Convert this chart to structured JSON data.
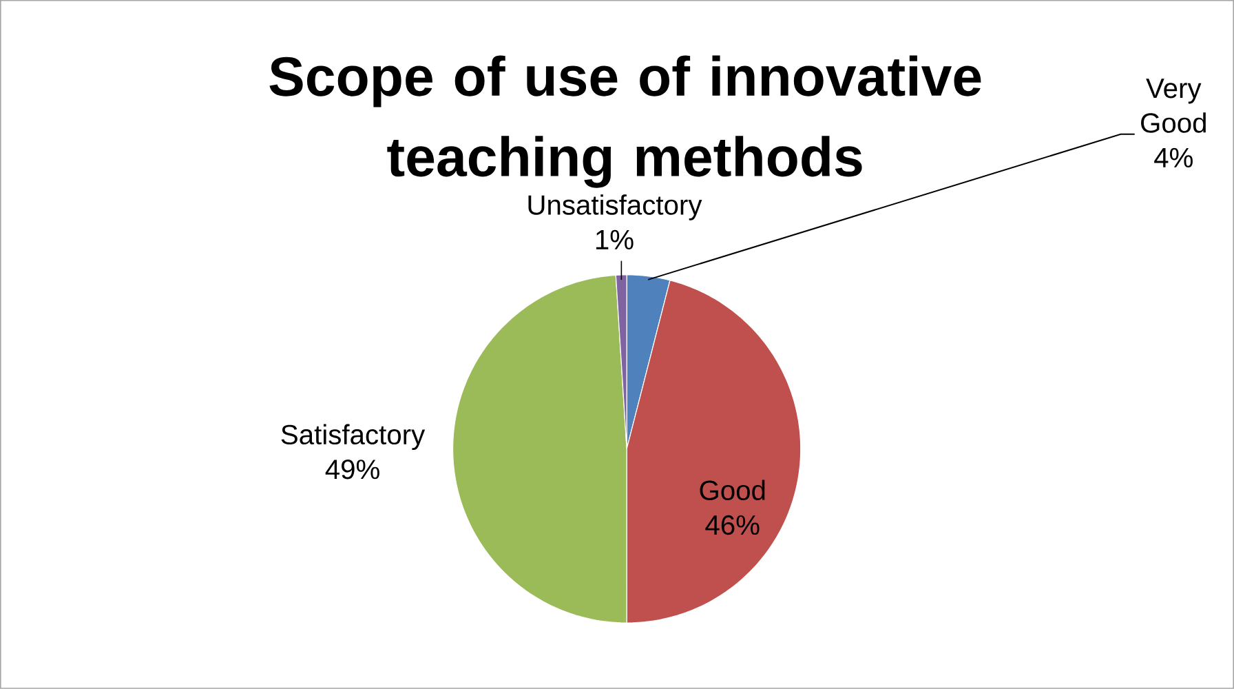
{
  "chart_data": {
    "type": "pie",
    "title": "Scope of use of innovative teaching methods",
    "categories": [
      "Very Good",
      "Good",
      "Satisfactory",
      "Unsatisfactory"
    ],
    "values": [
      4,
      46,
      49,
      1
    ],
    "colors": [
      "#4f81bd",
      "#c0504d",
      "#9bbb59",
      "#8064a2"
    ],
    "value_labels": [
      "4%",
      "46%",
      "49%",
      "1%"
    ]
  }
}
